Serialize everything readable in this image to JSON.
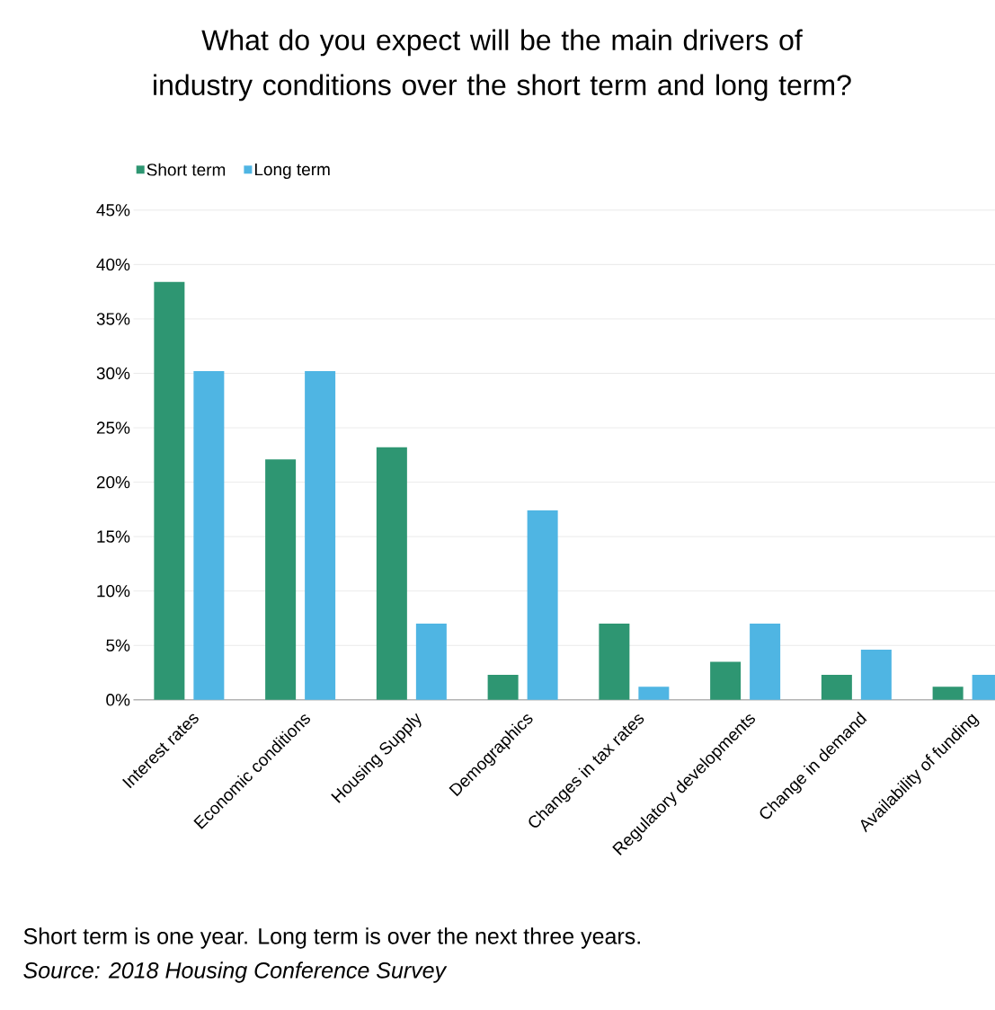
{
  "chart_data": {
    "type": "bar",
    "title": "What do you expect will be the main drivers of industry conditions over the short term and long term?",
    "categories": [
      "Interest rates",
      "Economic conditions",
      "Housing Supply",
      "Demographics",
      "Changes in tax rates",
      "Regulatory developments",
      "Change in demand",
      "Availability of funding"
    ],
    "series": [
      {
        "name": "Short term",
        "color": "#2e9672",
        "values": [
          38.4,
          22.1,
          23.2,
          2.3,
          7.0,
          3.5,
          2.3,
          1.2
        ]
      },
      {
        "name": "Long term",
        "color": "#4fb5e3",
        "values": [
          30.2,
          30.2,
          7.0,
          17.4,
          1.2,
          7.0,
          4.6,
          2.3
        ]
      }
    ],
    "ylim": [
      0,
      45
    ],
    "yticks": [
      {
        "value": 0,
        "label": "0%"
      },
      {
        "value": 5,
        "label": "5%"
      },
      {
        "value": 10,
        "label": "10%"
      },
      {
        "value": 15,
        "label": "15%"
      },
      {
        "value": 20,
        "label": "20%"
      },
      {
        "value": 25,
        "label": "25%"
      },
      {
        "value": 30,
        "label": "30%"
      },
      {
        "value": 35,
        "label": "35%"
      },
      {
        "value": 40,
        "label": "40%"
      },
      {
        "value": 45,
        "label": "45%"
      }
    ],
    "grid": "y",
    "legend": "top left",
    "annotations": [
      "Short term is one year. Long term is over the next three years.",
      "*Source: 2018 Housing Conference Survey*"
    ]
  }
}
